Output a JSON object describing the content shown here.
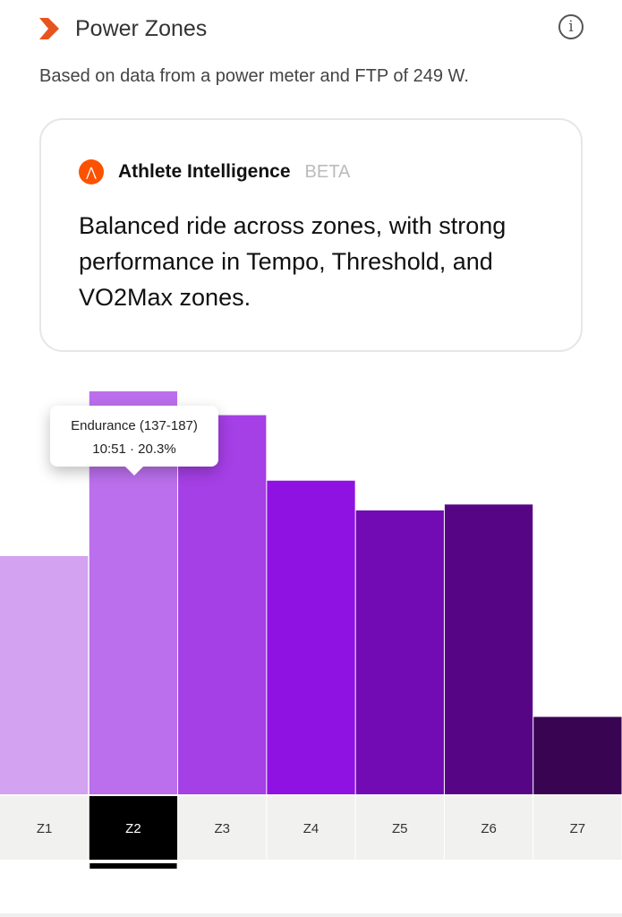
{
  "header": {
    "title": "Power Zones",
    "info_icon": "info-icon"
  },
  "subtitle": "Based on data from a power meter and FTP of 249 W.",
  "ai_card": {
    "name": "Athlete Intelligence",
    "badge": "BETA",
    "summary": "Balanced ride across zones, with strong performance in Tempo, Threshold, and VO2Max zones."
  },
  "tooltip": {
    "title": "Endurance (137-187)",
    "detail": "10:51 · 20.3%"
  },
  "chart_data": {
    "type": "bar",
    "categories": [
      "Z1",
      "Z2",
      "Z3",
      "Z4",
      "Z5",
      "Z6",
      "Z7"
    ],
    "values": [
      12.0,
      20.3,
      19.1,
      15.8,
      14.3,
      14.6,
      3.9
    ],
    "unit": "percent of time",
    "colors": [
      "#d3a2f0",
      "#bb6fec",
      "#a53fe6",
      "#8f12e2",
      "#730bb4",
      "#560684",
      "#390452"
    ],
    "selected": "Z2",
    "ylim": [
      0,
      20.3
    ]
  }
}
